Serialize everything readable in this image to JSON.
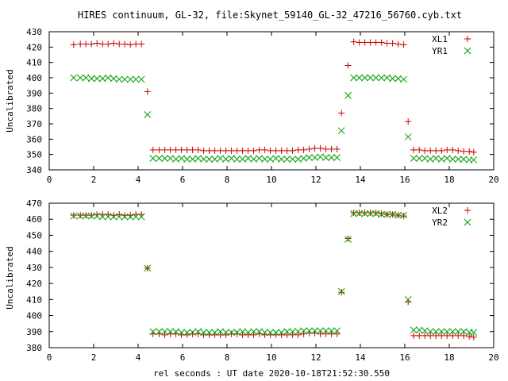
{
  "title": "HIRES continuum, GL-32, file:Skynet_59140_GL-32_47216_56760.cyb.txt",
  "xlabel": "rel seconds : UT date 2020-10-18T21:52:30.550",
  "colors": {
    "plus": "#cc0000",
    "cross": "#00a000",
    "axis": "#000000"
  },
  "chart_data": [
    {
      "type": "scatter",
      "ylabel": "Uncalibrated",
      "xlim": [
        0,
        20
      ],
      "ylim": [
        340,
        430
      ],
      "xticks": [
        0,
        2,
        4,
        6,
        8,
        10,
        12,
        14,
        16,
        18,
        20
      ],
      "yticks": [
        340,
        350,
        360,
        370,
        380,
        390,
        400,
        410,
        420,
        430
      ],
      "legend_position": "top-right",
      "x": [
        1.1,
        1.4,
        1.65,
        1.9,
        2.15,
        2.4,
        2.65,
        2.9,
        3.15,
        3.4,
        3.65,
        3.9,
        4.15,
        4.42,
        4.67,
        4.95,
        5.2,
        5.45,
        5.7,
        5.95,
        6.2,
        6.45,
        6.7,
        6.95,
        7.2,
        7.45,
        7.7,
        7.95,
        8.2,
        8.45,
        8.7,
        8.95,
        9.2,
        9.45,
        9.7,
        9.95,
        10.2,
        10.45,
        10.7,
        10.95,
        11.2,
        11.45,
        11.7,
        11.95,
        12.2,
        12.45,
        12.7,
        12.95,
        13.15,
        13.45,
        13.7,
        13.95,
        14.2,
        14.45,
        14.7,
        14.95,
        15.2,
        15.45,
        15.7,
        15.95,
        16.15,
        16.4,
        16.65,
        16.9,
        17.15,
        17.4,
        17.65,
        17.9,
        18.15,
        18.4,
        18.65,
        18.9,
        19.1
      ],
      "series": [
        {
          "name": "XL1",
          "marker": "plus",
          "values": [
            421.5,
            422,
            422,
            422,
            422.5,
            422,
            422,
            422.5,
            422,
            422,
            421.5,
            422,
            422,
            391,
            353,
            353,
            353,
            353,
            353,
            353,
            353,
            353,
            353,
            352.5,
            352.5,
            352.5,
            352.5,
            352.5,
            352.5,
            352.5,
            352.5,
            352.5,
            352.5,
            353,
            353,
            352.5,
            352.5,
            352.5,
            352.5,
            352.5,
            353,
            353,
            353.5,
            354,
            354,
            353.5,
            353.5,
            353.5,
            377,
            408,
            423.5,
            423,
            423,
            423,
            423,
            423,
            422.5,
            422.5,
            422,
            421.5,
            371.5,
            353,
            353,
            352.5,
            352.5,
            352.5,
            352.5,
            353,
            353,
            352.5,
            352,
            352,
            351.5
          ]
        },
        {
          "name": "YR1",
          "marker": "cross",
          "values": [
            400,
            400,
            400,
            399.5,
            399.5,
            399.5,
            400,
            399.5,
            399,
            399,
            399,
            399,
            399,
            376,
            347.5,
            347.5,
            347.5,
            347.5,
            347,
            347.5,
            347,
            347,
            347.5,
            347,
            347,
            347,
            347.5,
            347,
            347.5,
            347,
            347,
            347.5,
            347,
            347.5,
            347,
            347,
            347.5,
            347,
            347,
            347,
            347,
            347.5,
            348,
            348,
            348.5,
            348,
            348,
            348,
            365.5,
            388.5,
            400,
            400,
            400,
            400,
            400,
            400,
            400,
            399.5,
            399.5,
            399,
            361.5,
            347.5,
            347.5,
            347.5,
            347,
            347.5,
            347,
            347.5,
            347,
            347,
            347,
            346.5,
            346.5
          ]
        }
      ]
    },
    {
      "type": "scatter",
      "ylabel": "Uncalibrated",
      "xlim": [
        0,
        20
      ],
      "ylim": [
        380,
        470
      ],
      "xticks": [
        0,
        2,
        4,
        6,
        8,
        10,
        12,
        14,
        16,
        18,
        20
      ],
      "yticks": [
        380,
        390,
        400,
        410,
        420,
        430,
        440,
        450,
        460,
        470
      ],
      "legend_position": "top-right",
      "x": [
        1.1,
        1.4,
        1.65,
        1.9,
        2.15,
        2.4,
        2.65,
        2.9,
        3.15,
        3.4,
        3.65,
        3.9,
        4.15,
        4.42,
        4.67,
        4.95,
        5.2,
        5.45,
        5.7,
        5.95,
        6.2,
        6.45,
        6.7,
        6.95,
        7.2,
        7.45,
        7.7,
        7.95,
        8.2,
        8.45,
        8.7,
        8.95,
        9.2,
        9.45,
        9.7,
        9.95,
        10.2,
        10.45,
        10.7,
        10.95,
        11.2,
        11.45,
        11.7,
        11.95,
        12.2,
        12.45,
        12.7,
        12.95,
        13.15,
        13.45,
        13.7,
        13.95,
        14.2,
        14.45,
        14.7,
        14.95,
        15.2,
        15.45,
        15.7,
        15.95,
        16.15,
        16.4,
        16.65,
        16.9,
        17.15,
        17.4,
        17.65,
        17.9,
        18.15,
        18.4,
        18.65,
        18.9,
        19.1
      ],
      "series": [
        {
          "name": "XL2",
          "marker": "plus",
          "values": [
            462.5,
            462.5,
            462.5,
            462.5,
            463,
            463,
            463,
            462.5,
            463,
            462.5,
            462.5,
            463,
            463,
            429.5,
            388.5,
            388.5,
            388,
            388.5,
            388.5,
            388,
            388,
            388.5,
            388.5,
            388,
            388,
            388,
            388,
            388,
            388.5,
            388.5,
            388,
            388,
            388,
            388.5,
            388,
            388,
            388,
            388,
            388,
            388,
            388,
            388.5,
            389,
            389,
            388.5,
            388.5,
            388.5,
            388.5,
            414.5,
            448,
            464,
            464,
            464,
            464,
            464,
            463.5,
            463,
            463,
            462.5,
            462,
            408.5,
            387.5,
            387.5,
            387.5,
            387.5,
            387.5,
            387.5,
            387.5,
            387.5,
            387.5,
            387.5,
            387,
            386.5
          ]
        },
        {
          "name": "YR2",
          "marker": "cross",
          "values": [
            462,
            462,
            462,
            462,
            462,
            461.5,
            461.5,
            461.5,
            461.5,
            461.5,
            461.5,
            461.5,
            461.5,
            429.5,
            390,
            390,
            390,
            390,
            390,
            389.5,
            389.5,
            389.5,
            390,
            389.5,
            389.5,
            389.5,
            390,
            389.5,
            389.5,
            389.5,
            390,
            389.5,
            390,
            390,
            389.5,
            389.5,
            389.5,
            389.5,
            390,
            390,
            390,
            390.5,
            390.5,
            390.5,
            390.5,
            390.5,
            390.5,
            390.5,
            415,
            447.5,
            463.5,
            463.5,
            463.5,
            463.5,
            463.5,
            463,
            463,
            463,
            462.5,
            462.5,
            410,
            391,
            391,
            390.5,
            390,
            390,
            390,
            390,
            390,
            390,
            390,
            389.5,
            389.5
          ]
        }
      ]
    }
  ]
}
